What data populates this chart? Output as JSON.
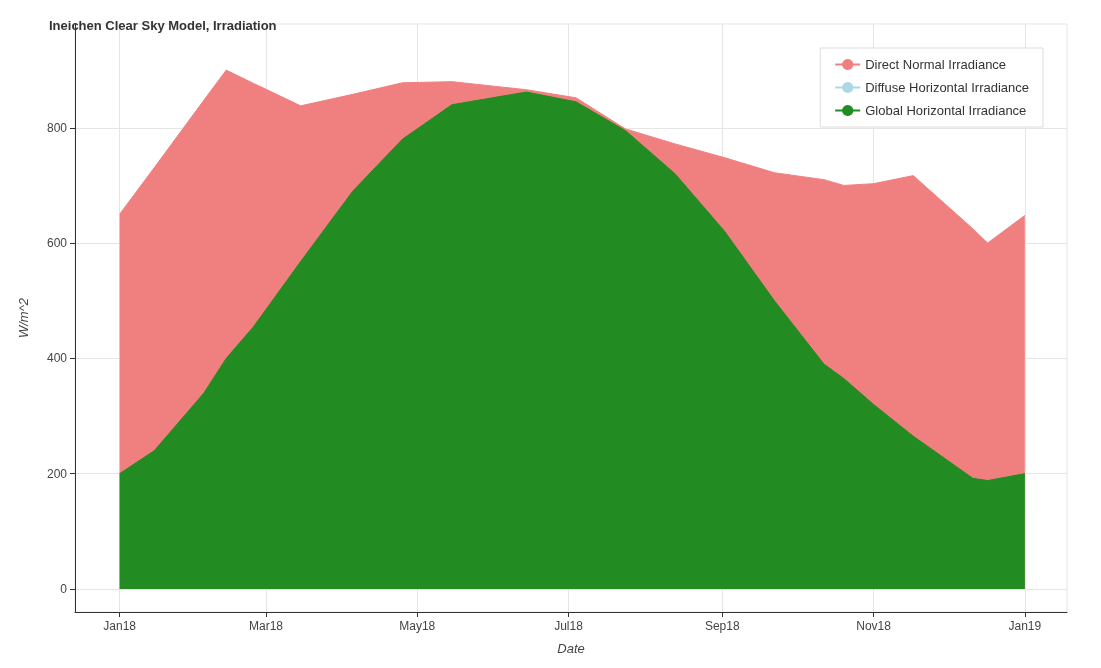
{
  "chart_data": {
    "type": "area",
    "title": "Ineichen Clear Sky Model, Irradiation",
    "xlabel": "Date",
    "ylabel": "W/m^2",
    "x": [
      "2018-01-01",
      "2018-01-15",
      "2018-02-04",
      "2018-02-13",
      "2018-02-24",
      "2018-03-15",
      "2018-04-05",
      "2018-04-25",
      "2018-05-15",
      "2018-06-14",
      "2018-07-04",
      "2018-07-24",
      "2018-08-13",
      "2018-09-02",
      "2018-09-22",
      "2018-10-12",
      "2018-10-20",
      "2018-11-01",
      "2018-11-17",
      "2018-12-11",
      "2018-12-17",
      "2019-01-01"
    ],
    "series": [
      {
        "name": "Direct Normal Irradiance",
        "color": "#f08080",
        "values": [
          650,
          731,
          848,
          900,
          877,
          838,
          858,
          878,
          880,
          866,
          852,
          798,
          772,
          748,
          722,
          710,
          700,
          703,
          717,
          625,
          600,
          648
        ]
      },
      {
        "name": "Diffuse Horizontal Irradiance",
        "color": "#add8e6",
        "values": [
          null,
          null,
          null,
          null,
          null,
          null,
          null,
          null,
          null,
          null,
          null,
          null,
          null,
          null,
          null,
          null,
          null,
          null,
          null,
          null,
          null,
          null
        ]
      },
      {
        "name": "Global Horizontal Irradiance",
        "color": "#228b22",
        "values": [
          200,
          240,
          340,
          400,
          455,
          568,
          690,
          780,
          840,
          862,
          845,
          795,
          720,
          620,
          500,
          390,
          365,
          320,
          265,
          192,
          188,
          200
        ]
      }
    ],
    "xlim": [
      "2017-12-14",
      "2019-01-18"
    ],
    "xticks": [
      {
        "value": "2018-01-01",
        "label": "Jan18"
      },
      {
        "value": "2018-03-01",
        "label": "Mar18"
      },
      {
        "value": "2018-05-01",
        "label": "May18"
      },
      {
        "value": "2018-07-01",
        "label": "Jul18"
      },
      {
        "value": "2018-09-01",
        "label": "Sep18"
      },
      {
        "value": "2018-11-01",
        "label": "Nov18"
      },
      {
        "value": "2019-01-01",
        "label": "Jan19"
      }
    ],
    "ylim": [
      -40,
      980
    ],
    "yticks": [
      0,
      200,
      400,
      600,
      800
    ],
    "grid": true,
    "legend": "top right"
  }
}
